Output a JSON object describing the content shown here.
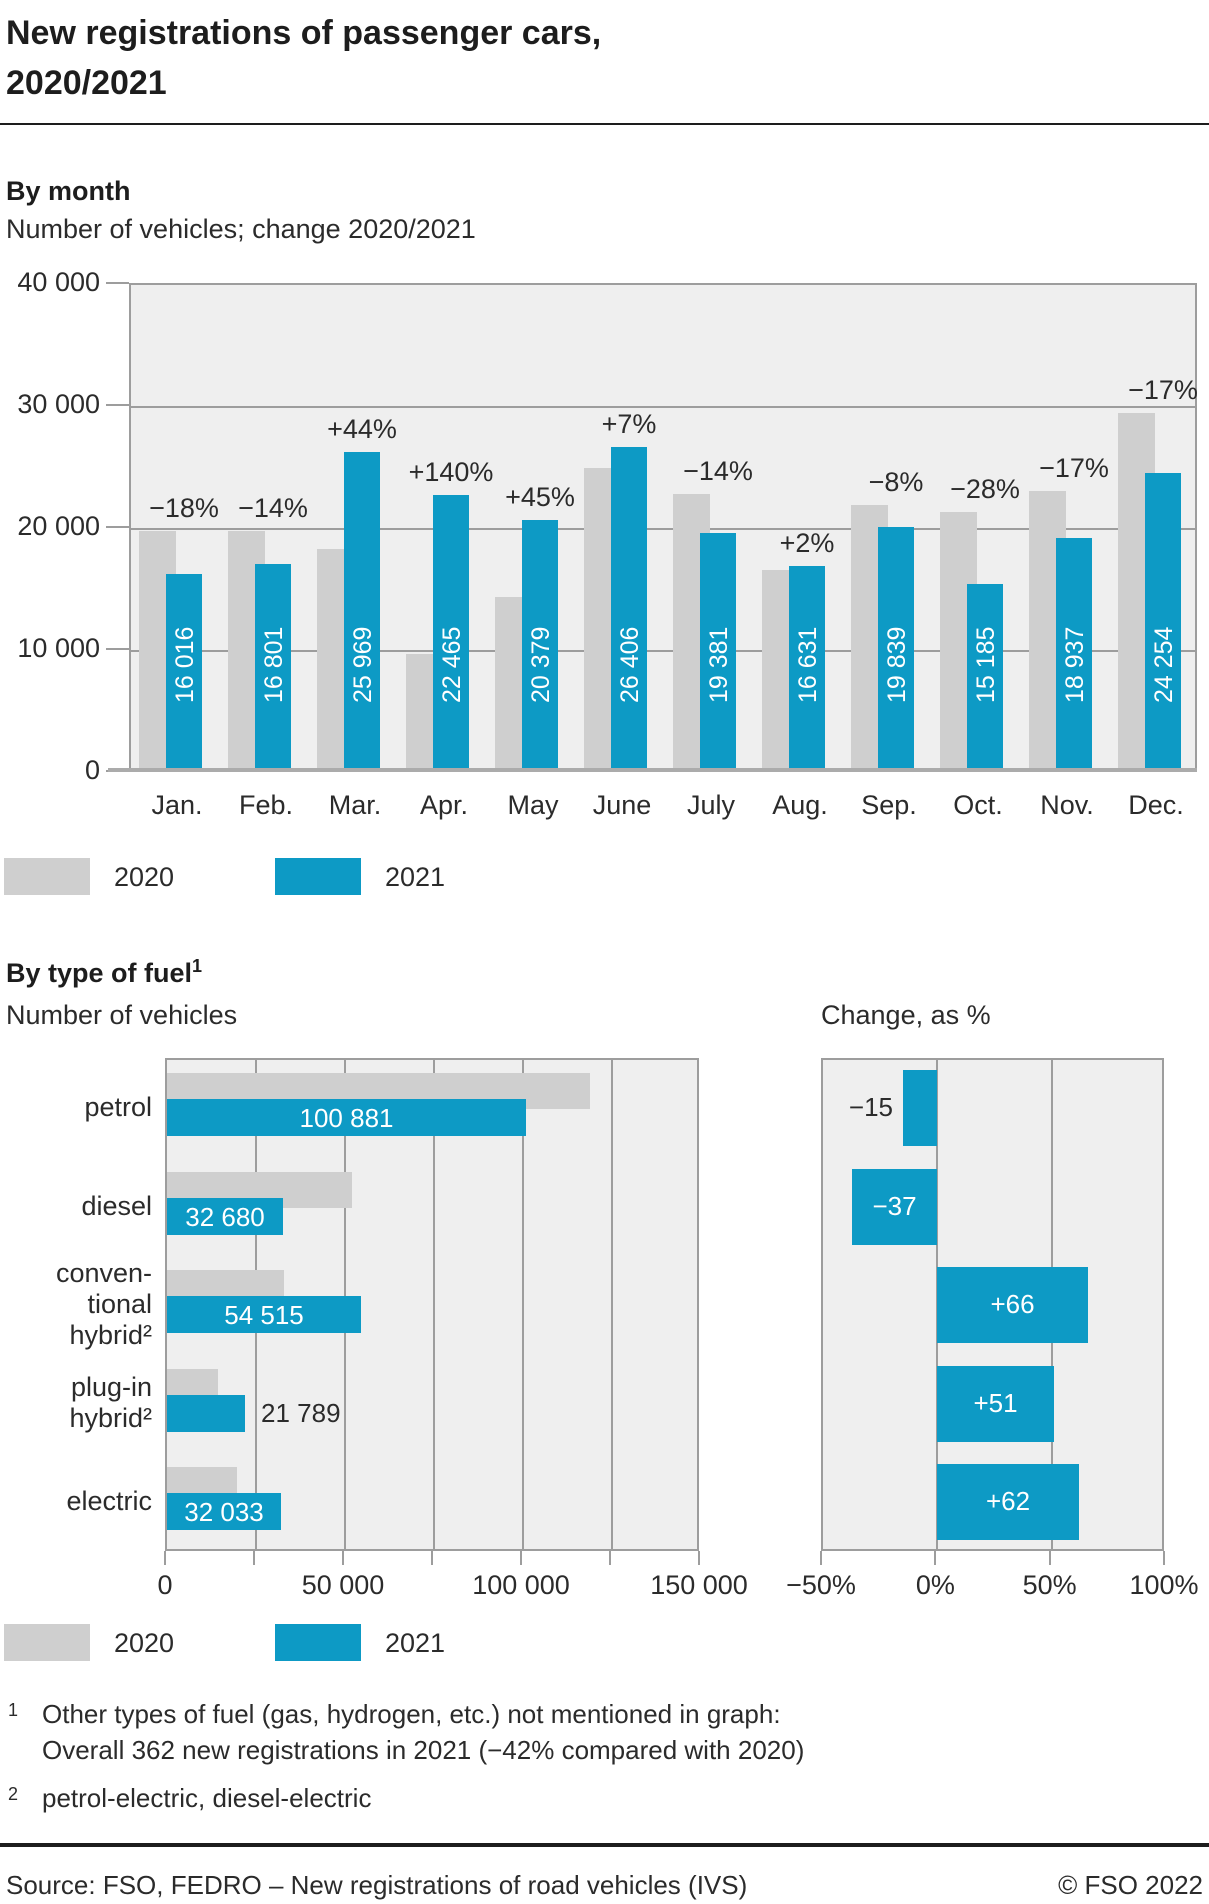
{
  "page": {
    "title_line1": "New registrations of passenger cars,",
    "title_line2": "2020/2021",
    "source_left": "Source: FSO, FEDRO – New registrations of road vehicles (IVS)",
    "source_right": "© FSO 2022"
  },
  "colors": {
    "bar2020": "#cfcfcf",
    "bar2021": "#0d9ac5",
    "plot_bg": "#efefef",
    "grid": "#9d9d9d",
    "baseline": "#ababab",
    "text": "#2b2b2b",
    "white": "#ffffff"
  },
  "legend": {
    "y2020": "2020",
    "y2021": "2021"
  },
  "sections": {
    "monthly": {
      "heading": "By month",
      "subtitle": "Number of vehicles; change 2020/2021"
    },
    "fuel": {
      "heading": "By type of fuel",
      "heading_sup": "1",
      "left_title": "Number of vehicles",
      "right_title": "Change, as %"
    }
  },
  "footnotes": [
    {
      "marker": "1",
      "lines": [
        "Other types of fuel (gas, hydrogen, etc.) not mentioned in graph:",
        "Overall 362 new registrations in 2021 (−42% compared with 2020)"
      ]
    },
    {
      "marker": "2",
      "lines": [
        "petrol-electric, diesel-electric"
      ]
    }
  ],
  "chart_data": [
    {
      "type": "bar",
      "title": "By month",
      "subtitle": "Number of vehicles; change 2020/2021",
      "categories": [
        "Jan.",
        "Feb.",
        "Mar.",
        "Apr.",
        "May",
        "June",
        "July",
        "Aug.",
        "Sep.",
        "Oct.",
        "Nov.",
        "Dec."
      ],
      "series": [
        {
          "name": "2020",
          "estimated_from_bars": true,
          "values": [
            19500,
            19500,
            18000,
            9400,
            14100,
            24700,
            22500,
            16300,
            21600,
            21100,
            22800,
            29200
          ]
        },
        {
          "name": "2021",
          "values": [
            16016,
            16801,
            25969,
            22465,
            20379,
            26406,
            19381,
            16631,
            19839,
            15185,
            18937,
            24254
          ]
        }
      ],
      "value_labels_2021": [
        "16 016",
        "16 801",
        "25 969",
        "22 465",
        "20 379",
        "26 406",
        "19 381",
        "16 631",
        "19 839",
        "15 185",
        "18 937",
        "24 254"
      ],
      "change_labels": [
        "−18%",
        "−14%",
        "+44%",
        "+140%",
        "+45%",
        "+7%",
        "−14%",
        "+2%",
        "−8%",
        "−28%",
        "−17%",
        "−17%"
      ],
      "ylim": [
        0,
        40000
      ],
      "ytick_labels": [
        "40 000",
        "30 000",
        "20 000",
        "10 000",
        "0"
      ],
      "grid": true,
      "legend_position": "bottom-left"
    },
    {
      "type": "bar-horizontal",
      "title": "By type of fuel",
      "category_label_lines": [
        [
          "petrol"
        ],
        [
          "diesel"
        ],
        [
          "conven-",
          "tional",
          "hybrid²"
        ],
        [
          "plug-in",
          "hybrid²"
        ],
        [
          "electric"
        ]
      ],
      "left_panel": {
        "title": "Number of vehicles",
        "xlim": [
          0,
          150000
        ],
        "xtick_labels": [
          "0",
          "50 000",
          "100 000",
          "150 000"
        ],
        "gridline_step": 25000,
        "series": [
          {
            "name": "2020",
            "estimated_from_bars": true,
            "values": [
              118700,
              51900,
              32800,
              14400,
              19800
            ]
          },
          {
            "name": "2021",
            "values": [
              100881,
              32680,
              54515,
              21789,
              32033
            ]
          }
        ],
        "value_labels_2021": [
          "100 881",
          "32 680",
          "54 515",
          "21 789",
          "32 033"
        ],
        "label_outside_index": 3
      },
      "right_panel": {
        "title": "Change, as %",
        "xlim": [
          -50,
          100
        ],
        "xtick_labels": [
          "−50%",
          "0%",
          "50%",
          "100%"
        ],
        "values": [
          -15,
          -37,
          66,
          51,
          62
        ],
        "value_labels": [
          "−15",
          "−37",
          "+66",
          "+51",
          "+62"
        ],
        "label_outside_index": 0
      },
      "legend_position": "bottom-left"
    }
  ]
}
